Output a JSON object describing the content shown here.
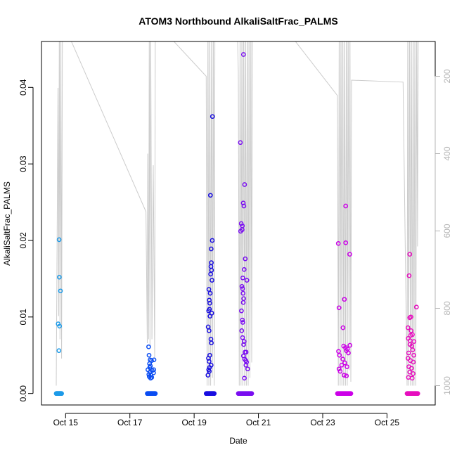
{
  "chart_data": {
    "type": "scatter",
    "title": "ATOM3 Northbound AlkaliSaltFrac_PALMS",
    "xlabel": "Date",
    "ylabel": "AlkaliSaltFrac_PALMS",
    "xlim": [
      "2017-10-14T06:00",
      "2017-10-26T12:00"
    ],
    "ylim": [
      -0.0015,
      0.046
    ],
    "x_ticks": [
      {
        "date": "2017-10-15",
        "label": "Oct 15"
      },
      {
        "date": "2017-10-17",
        "label": "Oct 17"
      },
      {
        "date": "2017-10-19",
        "label": "Oct 19"
      },
      {
        "date": "2017-10-21",
        "label": "Oct 21"
      },
      {
        "date": "2017-10-23",
        "label": "Oct 23"
      },
      {
        "date": "2017-10-25",
        "label": "Oct 25"
      }
    ],
    "y_ticks": [
      {
        "value": 0.0,
        "label": "0.00"
      },
      {
        "value": 0.01,
        "label": "0.01"
      },
      {
        "value": 0.02,
        "label": "0.02"
      },
      {
        "value": 0.03,
        "label": "0.03"
      },
      {
        "value": 0.04,
        "label": "0.04"
      }
    ],
    "y2_reversed": true,
    "y2lim": [
      1050,
      110
    ],
    "y2_ticks": [
      {
        "value": 200,
        "label": "200"
      },
      {
        "value": 400,
        "label": "400"
      },
      {
        "value": 600,
        "label": "600"
      },
      {
        "value": 800,
        "label": "800"
      },
      {
        "value": 1000,
        "label": "1000"
      }
    ],
    "grid": false,
    "legend": "none",
    "colors": {
      "axis": "#000000",
      "secondary_axis": "#b5b5b5",
      "altitude_line": "#cccccc",
      "flight_colors": [
        "#1e9be8",
        "#0b4df2",
        "#1a0fe0",
        "#7a0ef0",
        "#cc00e8",
        "#e60fbe"
      ]
    },
    "series": [
      {
        "flight": 1,
        "zeros_from": "2017-10-14T17:00",
        "zeros_to": "2017-10-14T21:00",
        "points": [
          [
            "2017-10-14T19:10",
            0.0201
          ],
          [
            "2017-10-14T19:20",
            0.0152
          ],
          [
            "2017-10-14T20:10",
            0.0134
          ],
          [
            "2017-10-14T18:30",
            0.0091
          ],
          [
            "2017-10-14T19:30",
            0.0088
          ],
          [
            "2017-10-14T19:00",
            0.0056
          ]
        ]
      },
      {
        "flight": 2,
        "zeros_from": "2017-10-17T13:00",
        "zeros_to": "2017-10-17T19:00",
        "points": [
          [
            "2017-10-17T14:00",
            0.0061
          ],
          [
            "2017-10-17T14:20",
            0.005
          ],
          [
            "2017-10-17T15:10",
            0.0044
          ],
          [
            "2017-10-17T16:10",
            0.0043
          ],
          [
            "2017-10-17T18:00",
            0.0044
          ],
          [
            "2017-10-17T14:40",
            0.0039
          ],
          [
            "2017-10-17T15:20",
            0.0036
          ],
          [
            "2017-10-17T14:50",
            0.0034
          ],
          [
            "2017-10-17T13:30",
            0.0031
          ],
          [
            "2017-10-17T17:50",
            0.0031
          ],
          [
            "2017-10-17T16:40",
            0.003
          ],
          [
            "2017-10-17T15:00",
            0.0028
          ],
          [
            "2017-10-17T17:40",
            0.0027
          ],
          [
            "2017-10-17T14:10",
            0.0025
          ],
          [
            "2017-10-17T15:40",
            0.0024
          ],
          [
            "2017-10-17T14:30",
            0.0022
          ],
          [
            "2017-10-17T16:20",
            0.0021
          ],
          [
            "2017-10-17T15:30",
            0.002
          ]
        ]
      },
      {
        "flight": 3,
        "zeros_from": "2017-10-19T09:00",
        "zeros_to": "2017-10-19T15:00",
        "points": [
          [
            "2017-10-19T13:40",
            0.0362
          ],
          [
            "2017-10-19T12:10",
            0.0259
          ],
          [
            "2017-10-19T13:30",
            0.02
          ],
          [
            "2017-10-19T12:40",
            0.0189
          ],
          [
            "2017-10-19T12:50",
            0.0171
          ],
          [
            "2017-10-19T12:30",
            0.0166
          ],
          [
            "2017-10-19T13:00",
            0.0161
          ],
          [
            "2017-10-19T12:20",
            0.0156
          ],
          [
            "2017-10-19T13:20",
            0.0148
          ],
          [
            "2017-10-19T11:00",
            0.0136
          ],
          [
            "2017-10-19T12:00",
            0.0131
          ],
          [
            "2017-10-19T11:20",
            0.0122
          ],
          [
            "2017-10-19T11:40",
            0.0118
          ],
          [
            "2017-10-19T11:30",
            0.011
          ],
          [
            "2017-10-19T10:50",
            0.0108
          ],
          [
            "2017-10-19T13:10",
            0.0105
          ],
          [
            "2017-10-19T11:50",
            0.0101
          ],
          [
            "2017-10-19T10:30",
            0.0087
          ],
          [
            "2017-10-19T11:10",
            0.0082
          ],
          [
            "2017-10-19T12:30",
            0.0071
          ],
          [
            "2017-10-19T12:50",
            0.0066
          ],
          [
            "2017-10-19T11:40",
            0.005
          ],
          [
            "2017-10-19T10:40",
            0.0046
          ],
          [
            "2017-10-19T11:10",
            0.0042
          ],
          [
            "2017-10-19T12:40",
            0.0037
          ],
          [
            "2017-10-19T11:30",
            0.0034
          ],
          [
            "2017-10-19T10:50",
            0.0031
          ],
          [
            "2017-10-19T11:20",
            0.0029
          ],
          [
            "2017-10-19T10:20",
            0.0024
          ]
        ]
      },
      {
        "flight": 4,
        "zeros_from": "2017-10-20T09:00",
        "zeros_to": "2017-10-20T19:00",
        "points": [
          [
            "2017-10-20T12:50",
            0.0443
          ],
          [
            "2017-10-20T10:30",
            0.0328
          ],
          [
            "2017-10-20T13:40",
            0.0273
          ],
          [
            "2017-10-20T12:40",
            0.0249
          ],
          [
            "2017-10-20T13:10",
            0.0245
          ],
          [
            "2017-10-20T11:10",
            0.0222
          ],
          [
            "2017-10-20T12:00",
            0.0219
          ],
          [
            "2017-10-20T10:40",
            0.0212
          ],
          [
            "2017-10-20T11:50",
            0.0214
          ],
          [
            "2017-10-20T14:10",
            0.0176
          ],
          [
            "2017-10-20T13:20",
            0.0162
          ],
          [
            "2017-10-20T12:20",
            0.0151
          ],
          [
            "2017-10-20T15:20",
            0.0148
          ],
          [
            "2017-10-20T11:40",
            0.014
          ],
          [
            "2017-10-20T12:10",
            0.0137
          ],
          [
            "2017-10-20T12:30",
            0.0131
          ],
          [
            "2017-10-20T13:00",
            0.0124
          ],
          [
            "2017-10-20T12:40",
            0.0119
          ],
          [
            "2017-10-20T11:20",
            0.0108
          ],
          [
            "2017-10-20T12:00",
            0.0096
          ],
          [
            "2017-10-20T12:20",
            0.0093
          ],
          [
            "2017-10-20T11:30",
            0.0082
          ],
          [
            "2017-10-20T12:10",
            0.0073
          ],
          [
            "2017-10-20T13:20",
            0.0068
          ],
          [
            "2017-10-20T13:00",
            0.0064
          ],
          [
            "2017-10-20T14:00",
            0.0054
          ],
          [
            "2017-10-20T14:50",
            0.0054
          ],
          [
            "2017-10-20T12:50",
            0.0049
          ],
          [
            "2017-10-20T13:40",
            0.0045
          ],
          [
            "2017-10-20T14:30",
            0.0043
          ],
          [
            "2017-10-20T15:10",
            0.0041
          ],
          [
            "2017-10-20T14:40",
            0.0037
          ],
          [
            "2017-10-20T16:00",
            0.0032
          ],
          [
            "2017-10-20T13:30",
            0.002
          ]
        ]
      },
      {
        "flight": 5,
        "zeros_from": "2017-10-23T11:00",
        "zeros_to": "2017-10-23T21:00",
        "points": [
          [
            "2017-10-23T17:10",
            0.0245
          ],
          [
            "2017-10-23T11:40",
            0.0196
          ],
          [
            "2017-10-23T17:10",
            0.0197
          ],
          [
            "2017-10-23T20:10",
            0.0182
          ],
          [
            "2017-10-23T16:10",
            0.0123
          ],
          [
            "2017-10-23T12:10",
            0.0112
          ],
          [
            "2017-10-23T15:10",
            0.0086
          ],
          [
            "2017-10-23T15:40",
            0.0062
          ],
          [
            "2017-10-23T20:20",
            0.0063
          ],
          [
            "2017-10-23T17:00",
            0.006
          ],
          [
            "2017-10-23T18:30",
            0.0058
          ],
          [
            "2017-10-23T11:50",
            0.0055
          ],
          [
            "2017-10-23T17:40",
            0.0056
          ],
          [
            "2017-10-23T19:10",
            0.0053
          ],
          [
            "2017-10-23T12:30",
            0.005
          ],
          [
            "2017-10-23T15:00",
            0.0045
          ],
          [
            "2017-10-23T16:30",
            0.004
          ],
          [
            "2017-10-23T14:10",
            0.0037
          ],
          [
            "2017-10-23T18:10",
            0.0035
          ],
          [
            "2017-10-23T12:10",
            0.0032
          ],
          [
            "2017-10-23T13:00",
            0.0029
          ],
          [
            "2017-10-23T16:00",
            0.0024
          ],
          [
            "2017-10-23T17:40",
            0.0023
          ]
        ]
      },
      {
        "flight": 6,
        "zeros_from": "2017-10-25T15:00",
        "zeros_to": "2017-10-25T23:00",
        "points": [
          [
            "2017-10-25T17:00",
            0.0182
          ],
          [
            "2017-10-25T16:30",
            0.0154
          ],
          [
            "2017-10-25T22:00",
            0.0113
          ],
          [
            "2017-10-25T17:00",
            0.0099
          ],
          [
            "2017-10-25T17:50",
            0.01
          ],
          [
            "2017-10-25T15:40",
            0.0086
          ],
          [
            "2017-10-25T18:00",
            0.0082
          ],
          [
            "2017-10-25T17:40",
            0.0076
          ],
          [
            "2017-10-25T19:00",
            0.0077
          ],
          [
            "2017-10-25T15:50",
            0.0072
          ],
          [
            "2017-10-25T17:20",
            0.0069
          ],
          [
            "2017-10-25T20:10",
            0.0068
          ],
          [
            "2017-10-25T17:10",
            0.0064
          ],
          [
            "2017-10-25T18:30",
            0.0062
          ],
          [
            "2017-10-25T19:10",
            0.0057
          ],
          [
            "2017-10-25T16:10",
            0.0053
          ],
          [
            "2017-10-25T20:00",
            0.005
          ],
          [
            "2017-10-25T15:40",
            0.0046
          ],
          [
            "2017-10-25T17:30",
            0.0043
          ],
          [
            "2017-10-25T19:40",
            0.0041
          ],
          [
            "2017-10-25T16:20",
            0.0035
          ],
          [
            "2017-10-25T18:20",
            0.0033
          ],
          [
            "2017-10-25T17:00",
            0.0028
          ],
          [
            "2017-10-25T19:30",
            0.0026
          ],
          [
            "2017-10-25T16:00",
            0.0021
          ],
          [
            "2017-10-25T18:50",
            0.002
          ]
        ]
      }
    ],
    "altitude_trace": [
      [
        "2017-10-14T17:00",
        1000
      ],
      [
        "2017-10-14T18:20",
        230
      ],
      [
        "2017-10-14T18:50",
        820
      ],
      [
        "2017-10-14T19:20",
        40
      ],
      [
        "2017-10-14T19:50",
        880
      ],
      [
        "2017-10-14T20:30",
        60
      ],
      [
        "2017-10-14T21:00",
        930
      ],
      [
        "2017-10-14T21:40",
        40
      ],
      [
        "2017-10-14T22:00",
        60
      ],
      [
        "2017-10-17T12:00",
        550
      ],
      [
        "2017-10-17T13:00",
        890
      ],
      [
        "2017-10-17T13:20",
        400
      ],
      [
        "2017-10-17T14:00",
        880
      ],
      [
        "2017-10-17T14:30",
        100
      ],
      [
        "2017-10-17T15:00",
        900
      ],
      [
        "2017-10-17T15:30",
        40
      ],
      [
        "2017-10-17T16:30",
        880
      ],
      [
        "2017-10-17T17:30",
        430
      ],
      [
        "2017-10-17T18:30",
        930
      ],
      [
        "2017-10-17T19:00",
        40
      ],
      [
        "2017-10-17T19:30",
        60
      ],
      [
        "2017-10-19T09:00",
        200
      ],
      [
        "2017-10-19T09:40",
        1000
      ],
      [
        "2017-10-19T10:20",
        40
      ],
      [
        "2017-10-19T11:00",
        1000
      ],
      [
        "2017-10-19T11:40",
        40
      ],
      [
        "2017-10-19T12:20",
        1000
      ],
      [
        "2017-10-19T13:00",
        40
      ],
      [
        "2017-10-19T13:40",
        980
      ],
      [
        "2017-10-19T14:20",
        40
      ],
      [
        "2017-10-19T15:00",
        1000
      ],
      [
        "2017-10-19T15:30",
        40
      ],
      [
        "2017-10-20T08:00",
        40
      ],
      [
        "2017-10-20T09:00",
        190
      ],
      [
        "2017-10-20T09:40",
        1000
      ],
      [
        "2017-10-20T10:20",
        40
      ],
      [
        "2017-10-20T11:00",
        1000
      ],
      [
        "2017-10-20T11:40",
        40
      ],
      [
        "2017-10-20T12:20",
        1000
      ],
      [
        "2017-10-20T13:00",
        40
      ],
      [
        "2017-10-20T13:40",
        1000
      ],
      [
        "2017-10-20T14:20",
        40
      ],
      [
        "2017-10-20T15:00",
        1000
      ],
      [
        "2017-10-20T15:40",
        40
      ],
      [
        "2017-10-20T16:20",
        1000
      ],
      [
        "2017-10-20T17:00",
        40
      ],
      [
        "2017-10-20T17:40",
        980
      ],
      [
        "2017-10-20T18:20",
        40
      ],
      [
        "2017-10-20T19:00",
        940
      ],
      [
        "2017-10-20T19:30",
        40
      ],
      [
        "2017-10-21T12:00",
        40
      ],
      [
        "2017-10-23T11:00",
        250
      ],
      [
        "2017-10-23T11:40",
        1000
      ],
      [
        "2017-10-23T12:20",
        40
      ],
      [
        "2017-10-23T13:00",
        1000
      ],
      [
        "2017-10-23T13:40",
        40
      ],
      [
        "2017-10-23T14:20",
        1000
      ],
      [
        "2017-10-23T15:00",
        40
      ],
      [
        "2017-10-23T15:40",
        1000
      ],
      [
        "2017-10-23T16:20",
        40
      ],
      [
        "2017-10-23T17:00",
        1000
      ],
      [
        "2017-10-23T17:40",
        40
      ],
      [
        "2017-10-23T18:20",
        1000
      ],
      [
        "2017-10-23T19:00",
        40
      ],
      [
        "2017-10-23T19:40",
        960
      ],
      [
        "2017-10-23T20:20",
        40
      ],
      [
        "2017-10-23T21:00",
        990
      ],
      [
        "2017-10-23T21:30",
        210
      ],
      [
        "2017-10-25T12:00",
        215
      ],
      [
        "2017-10-25T15:00",
        1000
      ],
      [
        "2017-10-25T15:30",
        40
      ],
      [
        "2017-10-25T16:10",
        1000
      ],
      [
        "2017-10-25T16:50",
        40
      ],
      [
        "2017-10-25T17:30",
        1000
      ],
      [
        "2017-10-25T18:10",
        40
      ],
      [
        "2017-10-25T18:50",
        1000
      ],
      [
        "2017-10-25T19:30",
        40
      ],
      [
        "2017-10-25T20:10",
        1000
      ],
      [
        "2017-10-25T20:50",
        40
      ],
      [
        "2017-10-25T21:30",
        1000
      ],
      [
        "2017-10-25T22:10",
        40
      ],
      [
        "2017-10-25T22:50",
        640
      ],
      [
        "2017-10-25T23:20",
        40
      ]
    ]
  }
}
